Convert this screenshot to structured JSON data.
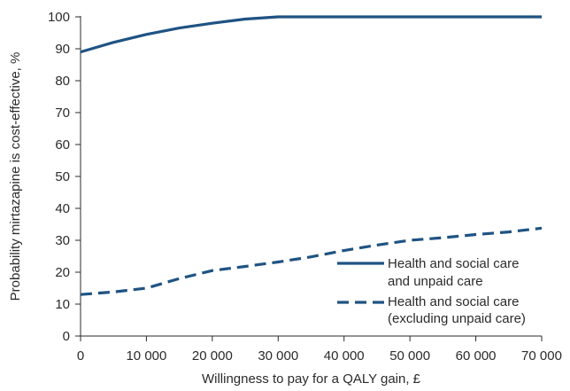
{
  "chart_data": {
    "type": "line",
    "title": "",
    "xlabel": "Willingness to pay for a QALY gain, £",
    "ylabel": "Probability mirtazapine is cost-effective, %",
    "xlim": [
      0,
      70000
    ],
    "ylim": [
      0,
      100
    ],
    "x_ticks": [
      0,
      10000,
      20000,
      30000,
      40000,
      50000,
      60000,
      70000
    ],
    "x_tick_labels": [
      "0",
      "10 000",
      "20 000",
      "30 000",
      "40 000",
      "50 000",
      "60 000",
      "70 000"
    ],
    "y_ticks": [
      0,
      10,
      20,
      30,
      40,
      50,
      60,
      70,
      80,
      90,
      100
    ],
    "y_tick_labels": [
      "0",
      "10",
      "20",
      "30",
      "40",
      "50",
      "60",
      "70",
      "80",
      "90",
      "100"
    ],
    "grid": false,
    "legend_position": "right",
    "series": [
      {
        "name": "Health and social care and unpaid care",
        "legend_lines": [
          "Health and social care",
          "and unpaid care"
        ],
        "style": "solid",
        "color": "#1f5383",
        "x": [
          0,
          5000,
          10000,
          15000,
          20000,
          25000,
          30000,
          35000,
          40000,
          45000,
          50000,
          55000,
          60000,
          65000,
          70000
        ],
        "y": [
          89,
          92,
          94.5,
          96.5,
          98,
          99.3,
          100,
          100,
          100,
          100,
          100,
          100,
          100,
          100,
          100
        ]
      },
      {
        "name": "Health and social care (excluding unpaid care)",
        "legend_lines": [
          "Health and social care",
          "(excluding unpaid care)"
        ],
        "style": "dashed",
        "color": "#1f5383",
        "x": [
          0,
          5000,
          10000,
          15000,
          20000,
          25000,
          30000,
          35000,
          40000,
          45000,
          50000,
          55000,
          60000,
          65000,
          70000
        ],
        "y": [
          13,
          13.8,
          15,
          18,
          20.5,
          21.8,
          23.2,
          24.8,
          26.8,
          28.5,
          30,
          30.8,
          31.8,
          32.6,
          33.8
        ]
      }
    ]
  }
}
